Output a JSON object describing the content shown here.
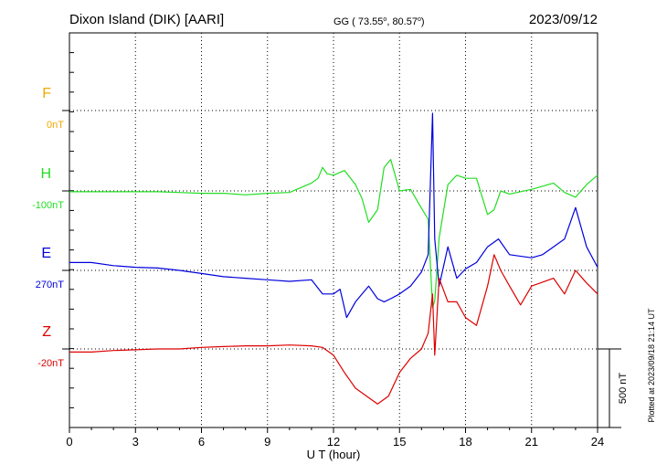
{
  "header": {
    "station": "Dixon Island (DIK)  [AARI]",
    "coords_prefix": "GG ( 73.55",
    "coords_mid": ",  80.57",
    "coords_suffix": ")",
    "deg": "o",
    "date": "2023/09/12"
  },
  "footer": {
    "plotted": "Plotted at 2023/09/18 21:14 UT"
  },
  "scale_bar": {
    "label": "500 nT",
    "value": 500
  },
  "chart_data": {
    "type": "line",
    "xlabel": "U T (hour)",
    "xlim": [
      0,
      24
    ],
    "xticks": [
      0,
      3,
      6,
      9,
      12,
      15,
      18,
      21,
      24
    ],
    "xtick_labels": [
      "0",
      "3",
      "6",
      "9",
      "12",
      "15",
      "18",
      "21",
      "24"
    ],
    "grid": true,
    "channels": [
      {
        "name": "F",
        "baseline_label": "0nT",
        "color": "#f0a800",
        "points": []
      },
      {
        "name": "H",
        "baseline_label": "-100nT",
        "color": "#22dd22",
        "points": [
          [
            0,
            -5
          ],
          [
            1,
            -5
          ],
          [
            2,
            -5
          ],
          [
            3,
            -5
          ],
          [
            4,
            -5
          ],
          [
            5,
            -10
          ],
          [
            6,
            -15
          ],
          [
            7,
            -15
          ],
          [
            8,
            -25
          ],
          [
            9,
            -15
          ],
          [
            10,
            -10
          ],
          [
            10.5,
            20
          ],
          [
            11,
            50
          ],
          [
            11.3,
            80
          ],
          [
            11.5,
            150
          ],
          [
            11.7,
            110
          ],
          [
            12,
            100
          ],
          [
            12.5,
            130
          ],
          [
            13,
            40
          ],
          [
            13.3,
            -50
          ],
          [
            13.6,
            -200
          ],
          [
            14,
            -120
          ],
          [
            14.3,
            150
          ],
          [
            14.6,
            200
          ],
          [
            15,
            0
          ],
          [
            15.5,
            10
          ],
          [
            16,
            -110
          ],
          [
            16.3,
            -180
          ],
          [
            16.5,
            -740
          ],
          [
            16.6,
            -700
          ],
          [
            16.8,
            -300
          ],
          [
            17.2,
            40
          ],
          [
            17.6,
            100
          ],
          [
            18,
            80
          ],
          [
            18.5,
            80
          ],
          [
            19,
            -150
          ],
          [
            19.3,
            -120
          ],
          [
            19.6,
            0
          ],
          [
            20,
            -20
          ],
          [
            21,
            10
          ],
          [
            22,
            50
          ],
          [
            22.5,
            -10
          ],
          [
            23,
            -40
          ],
          [
            23.5,
            40
          ],
          [
            24,
            100
          ]
        ]
      },
      {
        "name": "E",
        "baseline_label": "270nT",
        "color": "#0000dd",
        "points": [
          [
            0,
            50
          ],
          [
            1,
            50
          ],
          [
            2,
            30
          ],
          [
            3,
            20
          ],
          [
            4,
            15
          ],
          [
            5,
            0
          ],
          [
            6,
            -20
          ],
          [
            7,
            -40
          ],
          [
            8,
            -50
          ],
          [
            9,
            -60
          ],
          [
            10,
            -70
          ],
          [
            11,
            -60
          ],
          [
            11.5,
            -150
          ],
          [
            12,
            -150
          ],
          [
            12.3,
            -120
          ],
          [
            12.6,
            -300
          ],
          [
            13,
            -200
          ],
          [
            13.3,
            -150
          ],
          [
            13.6,
            -100
          ],
          [
            14,
            -180
          ],
          [
            14.3,
            -200
          ],
          [
            14.6,
            -180
          ],
          [
            15,
            -150
          ],
          [
            15.5,
            -100
          ],
          [
            16,
            -10
          ],
          [
            16.3,
            100
          ],
          [
            16.5,
            1000
          ],
          [
            16.6,
            200
          ],
          [
            16.8,
            -100
          ],
          [
            17.2,
            150
          ],
          [
            17.6,
            -50
          ],
          [
            18,
            10
          ],
          [
            18.5,
            50
          ],
          [
            19,
            150
          ],
          [
            19.5,
            200
          ],
          [
            20,
            100
          ],
          [
            21,
            80
          ],
          [
            21.5,
            100
          ],
          [
            22,
            150
          ],
          [
            22.5,
            200
          ],
          [
            23,
            400
          ],
          [
            23.5,
            150
          ],
          [
            24,
            20
          ]
        ]
      },
      {
        "name": "Z",
        "baseline_label": "-20nT",
        "color": "#dd0000",
        "points": [
          [
            0,
            -20
          ],
          [
            1,
            -20
          ],
          [
            2,
            -10
          ],
          [
            3,
            -5
          ],
          [
            4,
            0
          ],
          [
            5,
            0
          ],
          [
            6,
            10
          ],
          [
            7,
            15
          ],
          [
            8,
            20
          ],
          [
            9,
            20
          ],
          [
            10,
            25
          ],
          [
            11,
            20
          ],
          [
            11.5,
            10
          ],
          [
            12,
            -40
          ],
          [
            12.5,
            -150
          ],
          [
            13,
            -250
          ],
          [
            13.5,
            -300
          ],
          [
            14,
            -350
          ],
          [
            14.5,
            -300
          ],
          [
            15,
            -150
          ],
          [
            15.5,
            -60
          ],
          [
            16,
            0
          ],
          [
            16.3,
            100
          ],
          [
            16.5,
            350
          ],
          [
            16.6,
            -40
          ],
          [
            16.8,
            450
          ],
          [
            17.2,
            300
          ],
          [
            17.6,
            300
          ],
          [
            18,
            200
          ],
          [
            18.5,
            150
          ],
          [
            19,
            400
          ],
          [
            19.3,
            600
          ],
          [
            19.6,
            500
          ],
          [
            20,
            400
          ],
          [
            20.5,
            280
          ],
          [
            21,
            400
          ],
          [
            22,
            450
          ],
          [
            22.5,
            350
          ],
          [
            23,
            500
          ],
          [
            23.5,
            420
          ],
          [
            24,
            350
          ]
        ]
      }
    ]
  }
}
